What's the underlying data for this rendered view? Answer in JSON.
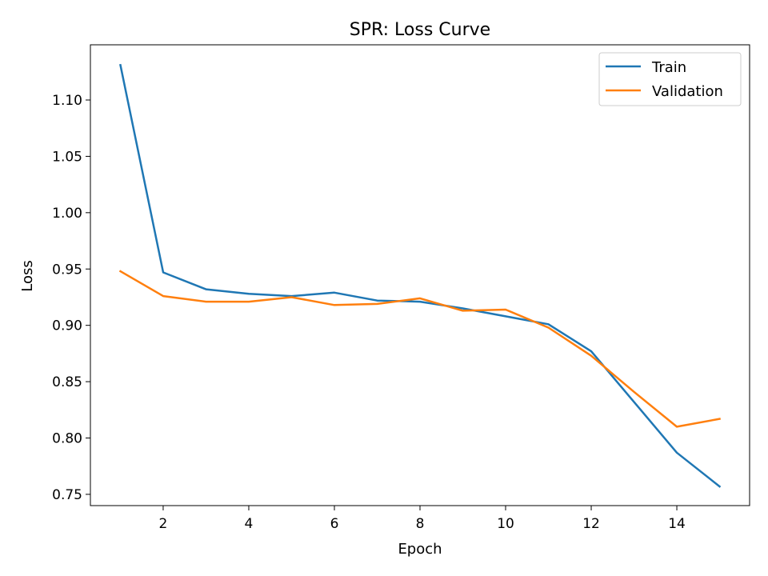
{
  "chart_data": {
    "type": "line",
    "title": "SPR: Loss Curve",
    "xlabel": "Epoch",
    "ylabel": "Loss",
    "xlim": [
      0.3,
      15.7
    ],
    "ylim": [
      0.74,
      1.149
    ],
    "xticks": [
      2,
      4,
      6,
      8,
      10,
      12,
      14
    ],
    "yticks": [
      0.75,
      0.8,
      0.85,
      0.9,
      0.95,
      1.0,
      1.05,
      1.1
    ],
    "ytick_labels": [
      "0.75",
      "0.80",
      "0.85",
      "0.90",
      "0.95",
      "1.00",
      "1.05",
      "1.10"
    ],
    "grid": false,
    "legend_position": "top-right",
    "x": [
      1,
      2,
      3,
      4,
      5,
      6,
      7,
      8,
      9,
      10,
      11,
      12,
      13,
      14,
      15
    ],
    "series": [
      {
        "name": "Train",
        "color": "#1f77b4",
        "values": [
          1.131,
          0.947,
          0.932,
          0.928,
          0.926,
          0.929,
          0.922,
          0.921,
          0.915,
          0.908,
          0.901,
          0.877,
          0.832,
          0.787,
          0.757
        ]
      },
      {
        "name": "Validation",
        "color": "#ff7f0e",
        "values": [
          0.948,
          0.926,
          0.921,
          0.921,
          0.925,
          0.918,
          0.919,
          0.924,
          0.913,
          0.914,
          0.898,
          0.873,
          0.841,
          0.81,
          0.817
        ]
      }
    ]
  }
}
